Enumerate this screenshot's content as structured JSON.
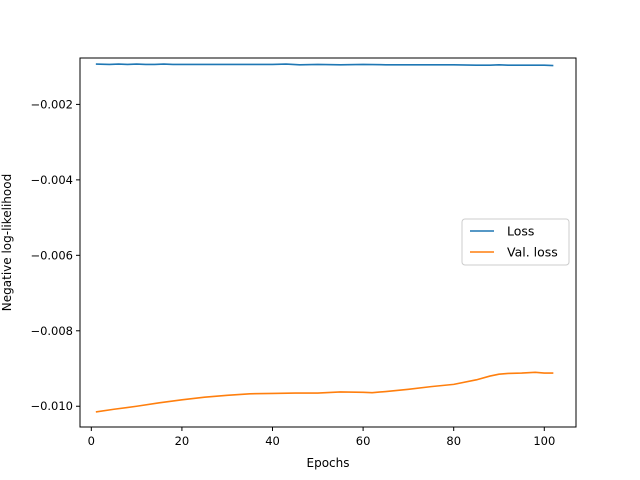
{
  "chart_data": {
    "type": "line",
    "title": "",
    "xlabel": "Epochs",
    "ylabel": "Negative log-likelihood",
    "xlim": [
      -2.5,
      107.0
    ],
    "ylim": [
      -0.01055,
      -0.00077
    ],
    "xticks": [
      0,
      20,
      40,
      60,
      80,
      100
    ],
    "xtick_labels": [
      "0",
      "20",
      "40",
      "60",
      "80",
      "100"
    ],
    "yticks": [
      -0.002,
      -0.004,
      -0.006,
      -0.008,
      -0.01
    ],
    "ytick_labels": [
      "−0.002",
      "−0.004",
      "−0.006",
      "−0.008",
      "−0.010"
    ],
    "grid": false,
    "legend": "center-right",
    "series": [
      {
        "name": "Loss",
        "color": "#1f77b4",
        "x": [
          1,
          4,
          6,
          8,
          10,
          12,
          14,
          16,
          18,
          20,
          25,
          30,
          35,
          40,
          43,
          46,
          50,
          55,
          60,
          65,
          70,
          75,
          80,
          85,
          88,
          90,
          92,
          95,
          98,
          100,
          102
        ],
        "y": [
          -0.00093,
          -0.00094,
          -0.00093,
          -0.00094,
          -0.00093,
          -0.00094,
          -0.00094,
          -0.00093,
          -0.00094,
          -0.00094,
          -0.00094,
          -0.00094,
          -0.00094,
          -0.00094,
          -0.00093,
          -0.00095,
          -0.00094,
          -0.00095,
          -0.00094,
          -0.00095,
          -0.00095,
          -0.00095,
          -0.00095,
          -0.00096,
          -0.00096,
          -0.00095,
          -0.00096,
          -0.00096,
          -0.00096,
          -0.00096,
          -0.00097
        ]
      },
      {
        "name": "Val. loss",
        "color": "#ff7f0e",
        "x": [
          1,
          5,
          10,
          15,
          20,
          25,
          30,
          35,
          40,
          45,
          50,
          55,
          60,
          62,
          65,
          70,
          75,
          80,
          85,
          88,
          90,
          92,
          95,
          98,
          100,
          102
        ],
        "y": [
          -0.01015,
          -0.01008,
          -0.01,
          -0.00991,
          -0.00983,
          -0.00976,
          -0.00971,
          -0.00967,
          -0.00966,
          -0.00965,
          -0.00965,
          -0.00962,
          -0.00963,
          -0.00964,
          -0.00961,
          -0.00955,
          -0.00948,
          -0.00942,
          -0.0093,
          -0.0092,
          -0.00915,
          -0.00913,
          -0.00912,
          -0.0091,
          -0.00912,
          -0.00912
        ]
      }
    ]
  }
}
